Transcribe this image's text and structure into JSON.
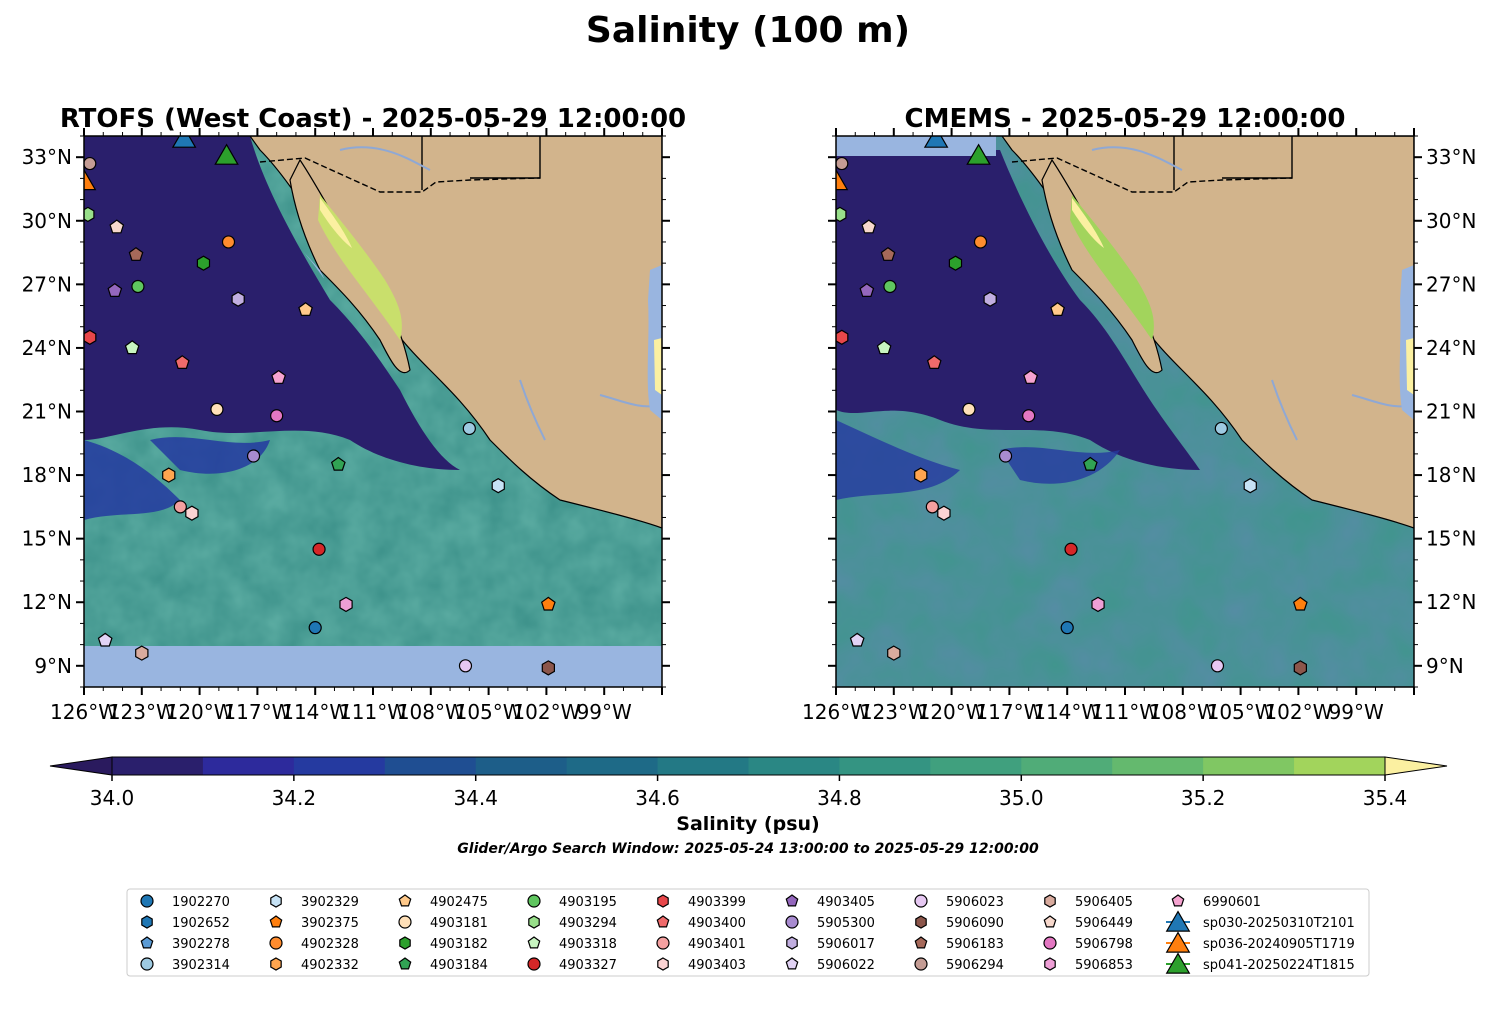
{
  "figure_title": "Salinity (100 m)",
  "chart_data": [
    {
      "type": "heatmap",
      "title": "RTOFS (West Coast) - 2025-05-29 12:00:00",
      "xlim": [
        -126,
        -96
      ],
      "ylim": [
        8,
        34
      ],
      "x_ticks": [
        "126°W",
        "123°W",
        "120°W",
        "117°W",
        "114°W",
        "111°W",
        "108°W",
        "105°W",
        "102°W",
        "99°W"
      ],
      "y_ticks": [
        "9°N",
        "12°N",
        "15°N",
        "18°N",
        "21°N",
        "24°N",
        "27°N",
        "30°N",
        "33°N"
      ],
      "y_tick_side": "left",
      "nodata_band_south_of_lat": 10.2
    },
    {
      "type": "heatmap",
      "title": "CMEMS - 2025-05-29 12:00:00",
      "xlim": [
        -126,
        -96
      ],
      "ylim": [
        8,
        34
      ],
      "x_ticks": [
        "126°W",
        "123°W",
        "120°W",
        "117°W",
        "114°W",
        "111°W",
        "108°W",
        "105°W",
        "102°W",
        "99°W"
      ],
      "y_ticks": [
        "9°N",
        "12°N",
        "15°N",
        "18°N",
        "21°N",
        "24°N",
        "27°N",
        "30°N",
        "33°N"
      ],
      "y_tick_side": "right",
      "nodata_band_south_of_lat": null
    }
  ],
  "colorbar": {
    "label": "Salinity (psu)",
    "range": [
      34.0,
      35.4
    ],
    "step": 0.1,
    "ticks": [
      "34.0",
      "34.2",
      "34.4",
      "34.6",
      "34.8",
      "35.0",
      "35.2",
      "35.4"
    ],
    "extend": "both",
    "colors": [
      "#2a1f6c",
      "#2d2a9c",
      "#253aa0",
      "#1f4e92",
      "#1d5e89",
      "#1e6a87",
      "#237985",
      "#2a8784",
      "#349482",
      "#40a07e",
      "#50ac78",
      "#64b96e",
      "#80c763",
      "#a2d45c",
      "#c9df6c"
    ],
    "under_color": "#2a1a5e",
    "over_color": "#fbf0a1"
  },
  "search_window_note": "Glider/Argo Search Window: 2025-05-24 13:00:00 to 2025-05-29 12:00:00",
  "map_colors": {
    "land": "#d2b48c",
    "lake_nodata": "#99b5e0",
    "river": "#8fa8d4"
  },
  "observations": [
    {
      "id": "1902270",
      "marker": "circle",
      "color": "#1f77b4",
      "lon": null,
      "lat": null
    },
    {
      "id": "1902652",
      "marker": "hexagon",
      "color": "#1f77b4",
      "lon": null,
      "lat": null
    },
    {
      "id": "3902278",
      "marker": "pentagon",
      "color": "#5b9bd5",
      "lon": null,
      "lat": null
    },
    {
      "id": "3902314",
      "marker": "circle",
      "color": "#9ecae1",
      "lon": -106.0,
      "lat": 20.2
    },
    {
      "id": "3902329",
      "marker": "hexagon",
      "color": "#c6e2f5",
      "lon": -104.5,
      "lat": 17.5
    },
    {
      "id": "3902375",
      "marker": "pentagon",
      "color": "#ff7f0e",
      "lon": -101.9,
      "lat": 11.9
    },
    {
      "id": "4902328",
      "marker": "circle",
      "color": "#ff8c2e",
      "lon": -118.5,
      "lat": 29.0
    },
    {
      "id": "4902332",
      "marker": "hexagon",
      "color": "#ffa54f",
      "lon": -121.6,
      "lat": 18.0
    },
    {
      "id": "4902475",
      "marker": "pentagon",
      "color": "#ffc98a",
      "lon": -114.5,
      "lat": 25.8
    },
    {
      "id": "4903181",
      "marker": "circle",
      "color": "#ffe0b8",
      "lon": -119.1,
      "lat": 21.1
    },
    {
      "id": "4903182",
      "marker": "hexagon",
      "color": "#2ca02c",
      "lon": -119.8,
      "lat": 28.0
    },
    {
      "id": "4903184",
      "marker": "pentagon",
      "color": "#31a354",
      "lon": -112.8,
      "lat": 18.5
    },
    {
      "id": "4903195",
      "marker": "circle",
      "color": "#5fc65f",
      "lon": -123.2,
      "lat": 26.9
    },
    {
      "id": "4903294",
      "marker": "hexagon",
      "color": "#98df8a",
      "lon": -125.8,
      "lat": 30.3
    },
    {
      "id": "4903318",
      "marker": "pentagon",
      "color": "#c7f5c0",
      "lon": -123.5,
      "lat": 24.0
    },
    {
      "id": "4903327",
      "marker": "circle",
      "color": "#d62728",
      "lon": -113.8,
      "lat": 14.5
    },
    {
      "id": "4903399",
      "marker": "hexagon",
      "color": "#e8474a",
      "lon": -125.7,
      "lat": 24.5
    },
    {
      "id": "4903400",
      "marker": "pentagon",
      "color": "#f06a6b",
      "lon": -120.9,
      "lat": 23.3
    },
    {
      "id": "4903401",
      "marker": "circle",
      "color": "#f4a0a0",
      "lon": -121.0,
      "lat": 16.5
    },
    {
      "id": "4903403",
      "marker": "hexagon",
      "color": "#fbd3d3",
      "lon": -120.4,
      "lat": 16.2
    },
    {
      "id": "4903405",
      "marker": "pentagon",
      "color": "#9467bd",
      "lon": -124.4,
      "lat": 26.7
    },
    {
      "id": "5905300",
      "marker": "circle",
      "color": "#a88bd0",
      "lon": -117.2,
      "lat": 18.9
    },
    {
      "id": "5906017",
      "marker": "hexagon",
      "color": "#c1aee0",
      "lon": -118.0,
      "lat": 26.3
    },
    {
      "id": "5906022",
      "marker": "pentagon",
      "color": "#e2d3f5",
      "lon": -124.9,
      "lat": 10.2
    },
    {
      "id": "5906023",
      "marker": "circle",
      "color": "#e6c8f2",
      "lon": -106.2,
      "lat": 9.0
    },
    {
      "id": "5906090",
      "marker": "hexagon",
      "color": "#8c564b",
      "lon": -101.9,
      "lat": 8.9
    },
    {
      "id": "5906183",
      "marker": "pentagon",
      "color": "#a6695a",
      "lon": -123.3,
      "lat": 28.4
    },
    {
      "id": "5906294",
      "marker": "circle",
      "color": "#c49c94",
      "lon": -125.7,
      "lat": 32.7
    },
    {
      "id": "5906405",
      "marker": "hexagon",
      "color": "#d9ab9e",
      "lon": -123.0,
      "lat": 9.6
    },
    {
      "id": "5906449",
      "marker": "pentagon",
      "color": "#f7d8cc",
      "lon": -124.3,
      "lat": 29.7
    },
    {
      "id": "5906798",
      "marker": "circle",
      "color": "#e377c2",
      "lon": -116.0,
      "lat": 20.8
    },
    {
      "id": "5906853",
      "marker": "hexagon",
      "color": "#ee9fd6",
      "lon": -112.4,
      "lat": 11.9
    },
    {
      "id": "6990601",
      "marker": "pentagon",
      "color": "#f5a3d0",
      "lon": -115.9,
      "lat": 22.6
    }
  ],
  "gliders": [
    {
      "id": "sp030-20250310T2101",
      "marker": "triangle",
      "color": "#1f77b4",
      "lon": -120.8,
      "lat": 33.9
    },
    {
      "id": "sp036-20240905T1719",
      "marker": "triangle",
      "color": "#ff7f0e",
      "lon": -126.0,
      "lat": 31.9
    },
    {
      "id": "sp041-20250224T1815",
      "marker": "triangle",
      "color": "#2ca02c",
      "lon": -118.6,
      "lat": 33.1
    }
  ],
  "extra_markers": [
    {
      "marker": "circle",
      "color": "#1f77b4",
      "lon": -114.0,
      "lat": 10.8,
      "edge_only": false
    }
  ]
}
